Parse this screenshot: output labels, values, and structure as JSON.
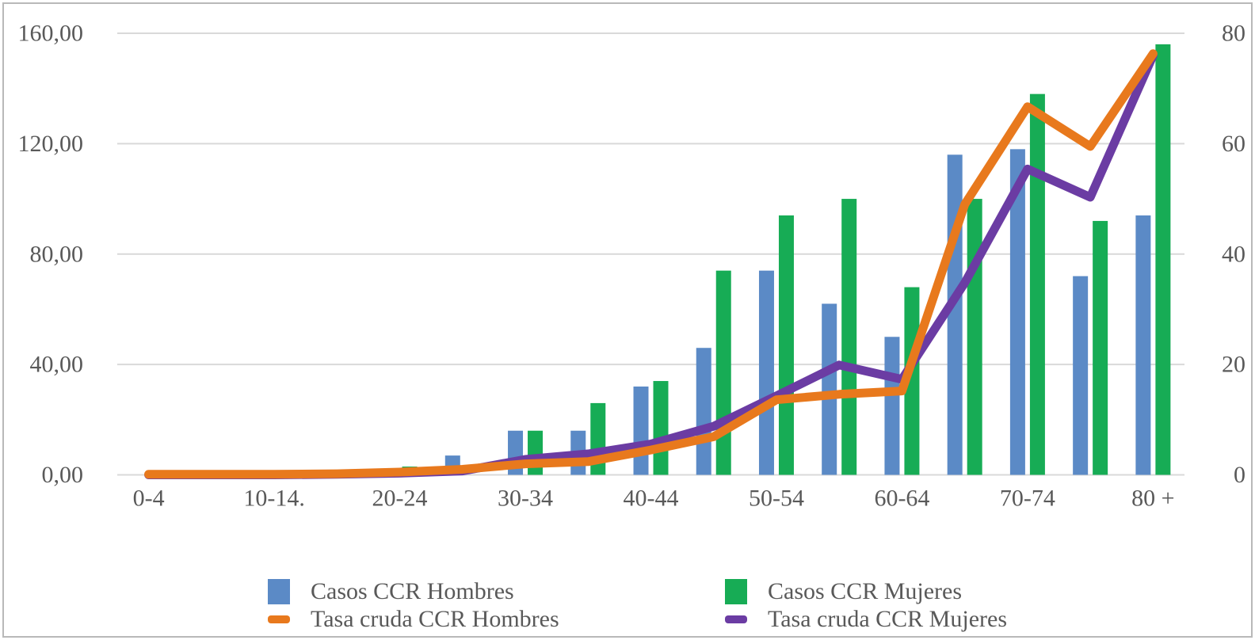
{
  "window": {
    "background": "#FFFFFF",
    "frame_border_color": "#B9B9B9"
  },
  "colors": {
    "text": "#595959",
    "gridline": "#D9D9D9",
    "bar_hombres_blue": "#5B8AC6",
    "bar_mujeres_green": "#17AC55",
    "line_hombres_orange": "#E8791D",
    "line_mujeres_purple": "#6B3CA3"
  },
  "chart_data": {
    "type": "combo-bar-line",
    "title": "",
    "xlabel": "",
    "ylabel_left": "",
    "ylabel_right": "",
    "grid": true,
    "legend_position": "bottom",
    "categories": [
      "0-4",
      "5-9",
      "10-14",
      "15-19",
      "20-24",
      "25-29",
      "30-34",
      "35-39",
      "40-44",
      "45-49",
      "50-54",
      "55-59",
      "60-64",
      "65-69",
      "70-74",
      "75-79",
      "80+"
    ],
    "x_tick_indices": [
      0,
      2,
      4,
      6,
      8,
      10,
      12,
      14,
      16
    ],
    "x_tick_labels": [
      "0-4",
      "10-14.",
      "20-24",
      "30-34",
      "40-44",
      "50-54",
      "60-64",
      "70-74",
      "80 +"
    ],
    "left_axis": {
      "ticks": [
        "0,00",
        "40,00",
        "80,00",
        "120,00",
        "160,00"
      ],
      "range": [
        0,
        160
      ]
    },
    "right_axis": {
      "ticks": [
        "0",
        "20",
        "40",
        "60",
        "80"
      ],
      "range": [
        0,
        80
      ]
    },
    "bar_series": [
      {
        "name": "Casos CCR Hombres",
        "axis": "left",
        "color": "#5B8AC6",
        "values": [
          0,
          0,
          0,
          0,
          0,
          7,
          16,
          16,
          32,
          46,
          74,
          62,
          50,
          116,
          118,
          72,
          94
        ]
      },
      {
        "name": "Casos CCR Mujeres",
        "axis": "left",
        "color": "#17AC55",
        "values": [
          0,
          0,
          0,
          0,
          3,
          0,
          16,
          26,
          34,
          74,
          94,
          100,
          68,
          100,
          138,
          92,
          156
        ]
      }
    ],
    "line_series": [
      {
        "name": "Tasa cruda CCR Mujeres",
        "axis": "right",
        "color": "#6B3CA3",
        "values": [
          0,
          0,
          0,
          0.1,
          0.3,
          0.7,
          2.8,
          3.8,
          5.6,
          8.8,
          14.3,
          19.9,
          17.3,
          34.8,
          55.4,
          50.3,
          76.0
        ]
      },
      {
        "name": "Tasa cruda CCR Hombres",
        "axis": "right",
        "color": "#E8791D",
        "values": [
          0.1,
          0.1,
          0.1,
          0.2,
          0.5,
          1.0,
          2.0,
          2.4,
          4.5,
          6.9,
          13.6,
          14.6,
          15.2,
          49.0,
          66.7,
          59.5,
          76.3
        ]
      }
    ]
  },
  "legend": {
    "items": [
      {
        "label": "Casos CCR Hombres",
        "swatch": "square",
        "color": "#5B8AC6",
        "col": 0,
        "row": 0
      },
      {
        "label": "Tasa cruda CCR Hombres",
        "swatch": "dash",
        "color": "#E8791D",
        "col": 0,
        "row": 1
      },
      {
        "label": "Casos CCR Mujeres",
        "swatch": "square",
        "color": "#17AC55",
        "col": 1,
        "row": 0
      },
      {
        "label": "Tasa cruda CCR Mujeres",
        "swatch": "dash",
        "color": "#6B3CA3",
        "col": 1,
        "row": 1
      }
    ]
  }
}
